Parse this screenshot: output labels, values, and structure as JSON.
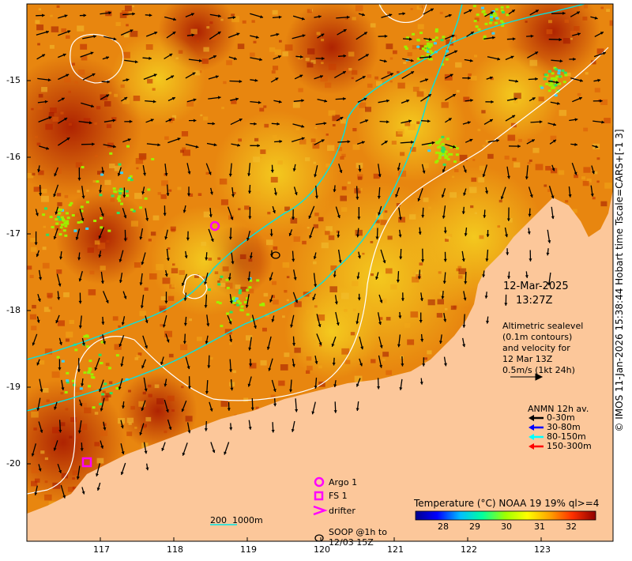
{
  "map": {
    "date_line": "12-Mar-2025",
    "time_line": "13:27Z",
    "altimetry_lines": [
      "Altimetric sealevel",
      "(0.1m contours)",
      "and velocity for",
      "12 Mar 13Z",
      "0.5m/s (1kt 24h)"
    ],
    "anmn_title": "ANMN 12h av.",
    "anmn_items": [
      {
        "label": "0-30m",
        "color": "#000000"
      },
      {
        "label": "30-80m",
        "color": "#0000ff"
      },
      {
        "label": "80-150m",
        "color": "#00ffff"
      },
      {
        "label": "150-300m",
        "color": "#ff0000"
      }
    ],
    "symbols": {
      "argo": "Argo 1",
      "fs": "FS 1",
      "drifter": "drifter",
      "soop_line1": "SOOP @1h to",
      "soop_line2": "12/03 15Z"
    },
    "bathy_label": "200  1000m",
    "x_ticks": [
      "117",
      "118",
      "119",
      "120",
      "121",
      "122",
      "123"
    ],
    "y_ticks": [
      "-15",
      "-16",
      "-17",
      "-18",
      "-19",
      "-20"
    ],
    "colorbar_title": "Temperature (°C) NOAA 19 19% ql>=4",
    "colorbar_ticks": [
      "28",
      "29",
      "30",
      "31",
      "32"
    ],
    "credit": "© IMOS 11-Jan-2026 15:38:44 Hobart time Tscale=CARS+[-1 3]",
    "colors": {
      "land": "#fcc79a",
      "sea_base": "#e8820c",
      "contour": "#ffffff",
      "isobath": "#00e5e5",
      "marker": "#ff00ff"
    }
  }
}
